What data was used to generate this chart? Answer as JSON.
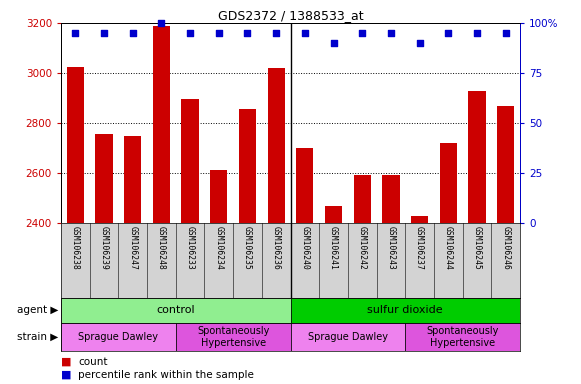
{
  "title": "GDS2372 / 1388533_at",
  "samples": [
    "GSM106238",
    "GSM106239",
    "GSM106247",
    "GSM106248",
    "GSM106233",
    "GSM106234",
    "GSM106235",
    "GSM106236",
    "GSM106240",
    "GSM106241",
    "GSM106242",
    "GSM106243",
    "GSM106237",
    "GSM106244",
    "GSM106245",
    "GSM106246"
  ],
  "counts": [
    3025,
    2755,
    2748,
    3190,
    2895,
    2612,
    2855,
    3020,
    2700,
    2465,
    2590,
    2590,
    2428,
    2718,
    2928,
    2868
  ],
  "percentile_ranks": [
    95,
    95,
    95,
    100,
    95,
    95,
    95,
    95,
    95,
    90,
    95,
    95,
    90,
    95,
    95,
    95
  ],
  "bar_color": "#cc0000",
  "dot_color": "#0000cc",
  "ylim_left": [
    2400,
    3200
  ],
  "ylim_right": [
    0,
    100
  ],
  "yticks_left": [
    2400,
    2600,
    2800,
    3000,
    3200
  ],
  "yticks_right": [
    0,
    25,
    50,
    75,
    100
  ],
  "agent_groups": [
    {
      "label": "control",
      "start": 0,
      "end": 8,
      "color": "#90ee90"
    },
    {
      "label": "sulfur dioxide",
      "start": 8,
      "end": 16,
      "color": "#00cc00"
    }
  ],
  "strain_groups": [
    {
      "label": "Sprague Dawley",
      "start": 0,
      "end": 4,
      "color": "#ee82ee"
    },
    {
      "label": "Spontaneously\nHypertensive",
      "start": 4,
      "end": 8,
      "color": "#dd55dd"
    },
    {
      "label": "Sprague Dawley",
      "start": 8,
      "end": 12,
      "color": "#ee82ee"
    },
    {
      "label": "Spontaneously\nHypertensive",
      "start": 12,
      "end": 16,
      "color": "#dd55dd"
    }
  ],
  "bar_color_hex": "#cc0000",
  "dot_color_hex": "#0000cc",
  "xticklabel_area_color": "#d3d3d3",
  "separator_col": 8,
  "n_samples": 16
}
